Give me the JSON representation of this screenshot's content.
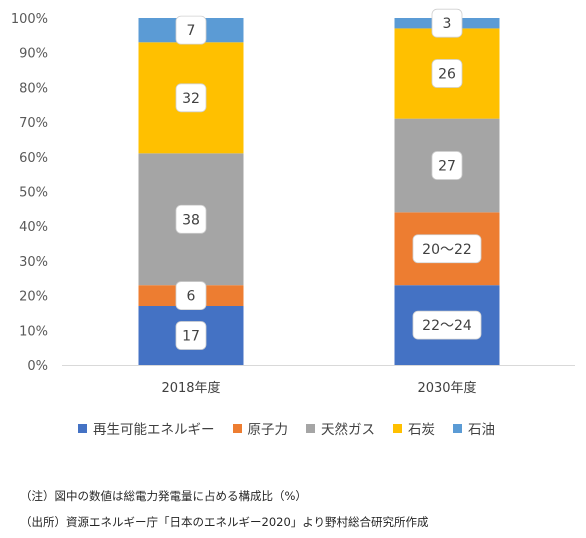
{
  "chart_data": {
    "type": "bar",
    "stacked": true,
    "orientation": "vertical",
    "categories": [
      "2018年度",
      "2030年度"
    ],
    "y_ticks": [
      "0%",
      "10%",
      "20%",
      "30%",
      "40%",
      "50%",
      "60%",
      "70%",
      "80%",
      "90%",
      "100%"
    ],
    "ylim": [
      0,
      100
    ],
    "grid": false,
    "legend_position": "bottom",
    "series": [
      {
        "name": "再生可能エネルギー",
        "color": "#4472C4",
        "values": [
          17,
          23
        ],
        "labels": [
          "17",
          "22〜24"
        ]
      },
      {
        "name": "原子力",
        "color": "#ED7D31",
        "values": [
          6,
          21
        ],
        "labels": [
          "6",
          "20〜22"
        ]
      },
      {
        "name": "天然ガス",
        "color": "#A5A5A5",
        "values": [
          38,
          27
        ],
        "labels": [
          "38",
          "27"
        ]
      },
      {
        "name": "石炭",
        "color": "#FFC000",
        "values": [
          32,
          26
        ],
        "labels": [
          "32",
          "26"
        ]
      },
      {
        "name": "石油",
        "color": "#5B9BD5",
        "values": [
          7,
          3
        ],
        "labels": [
          "7",
          "3"
        ]
      }
    ]
  },
  "notes": {
    "note1": "（注）図中の数値は総電力発電量に占める構成比（%）",
    "note2": "（出所）資源エネルギー庁「日本のエネルギー2020」より野村総合研究所作成"
  }
}
